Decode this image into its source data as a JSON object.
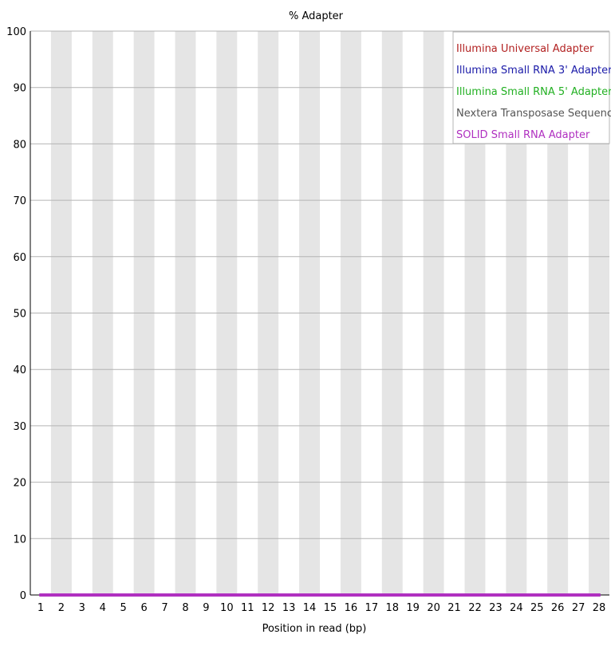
{
  "chart_data": {
    "type": "line",
    "title": "% Adapter",
    "xlabel": "Position in read (bp)",
    "ylabel": "",
    "x": [
      1,
      2,
      3,
      4,
      5,
      6,
      7,
      8,
      9,
      10,
      11,
      12,
      13,
      14,
      15,
      16,
      17,
      18,
      19,
      20,
      21,
      22,
      23,
      24,
      25,
      26,
      27,
      28
    ],
    "xlim": [
      1,
      28
    ],
    "ylim": [
      0,
      100
    ],
    "yticks": [
      0,
      10,
      20,
      30,
      40,
      50,
      60,
      70,
      80,
      90,
      100
    ],
    "grid": true,
    "legend_position": "top-right",
    "series": [
      {
        "name": "Illumina Universal Adapter",
        "color": "#b22222",
        "values": [
          0,
          0,
          0,
          0,
          0,
          0,
          0,
          0,
          0,
          0,
          0,
          0,
          0,
          0,
          0,
          0,
          0,
          0,
          0,
          0,
          0,
          0,
          0,
          0,
          0,
          0,
          0,
          0
        ]
      },
      {
        "name": "Illumina Small RNA 3' Adapter",
        "color": "#1a1aa8",
        "values": [
          0,
          0,
          0,
          0,
          0,
          0,
          0,
          0,
          0,
          0,
          0,
          0,
          0,
          0,
          0,
          0,
          0,
          0,
          0,
          0,
          0,
          0,
          0,
          0,
          0,
          0,
          0,
          0
        ]
      },
      {
        "name": "Illumina Small RNA 5' Adapter",
        "color": "#22b022",
        "values": [
          0,
          0,
          0,
          0,
          0,
          0,
          0,
          0,
          0,
          0,
          0,
          0,
          0,
          0,
          0,
          0,
          0,
          0,
          0,
          0,
          0,
          0,
          0,
          0,
          0,
          0,
          0,
          0
        ]
      },
      {
        "name": "Nextera Transposase Sequence",
        "color": "#555555",
        "values": [
          0,
          0,
          0,
          0,
          0,
          0,
          0,
          0,
          0,
          0,
          0,
          0,
          0,
          0,
          0,
          0,
          0,
          0,
          0,
          0,
          0,
          0,
          0,
          0,
          0,
          0,
          0,
          0
        ]
      },
      {
        "name": "SOLID Small RNA Adapter",
        "color": "#b030c0",
        "values": [
          0,
          0,
          0,
          0,
          0,
          0,
          0,
          0,
          0,
          0,
          0,
          0,
          0,
          0,
          0,
          0,
          0,
          0,
          0,
          0,
          0,
          0,
          0,
          0,
          0,
          0,
          0,
          0
        ]
      }
    ]
  }
}
